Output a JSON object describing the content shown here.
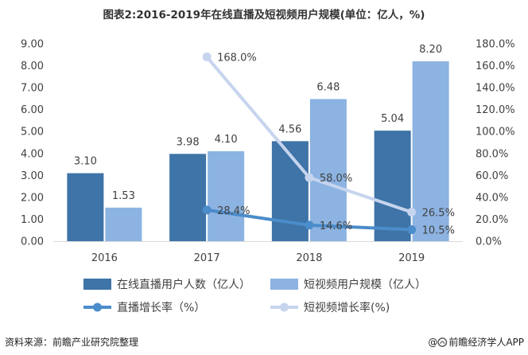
{
  "chart_data": {
    "type": "bar",
    "title": "图表2:2016-2019年在线直播及短视频用户规模(单位：亿人，%)",
    "categories": [
      "2016",
      "2017",
      "2018",
      "2019"
    ],
    "y_left": {
      "ylim": [
        0,
        9
      ],
      "ticks": [
        "0.00",
        "1.00",
        "2.00",
        "3.00",
        "4.00",
        "5.00",
        "6.00",
        "7.00",
        "8.00",
        "9.00"
      ]
    },
    "y_right": {
      "ylim": [
        0,
        180
      ],
      "ticks": [
        "0.0%",
        "20.0%",
        "40.0%",
        "60.0%",
        "80.0%",
        "100.0%",
        "120.0%",
        "140.0%",
        "160.0%",
        "180.0%"
      ]
    },
    "series": [
      {
        "name": "在线直播用户人数（亿人）",
        "type": "bar",
        "axis": "left",
        "values": [
          3.1,
          3.98,
          4.56,
          5.04
        ],
        "labels": [
          "3.10",
          "3.98",
          "4.56",
          "5.04"
        ],
        "color": "#3e74a7"
      },
      {
        "name": "短视频用户规模（亿人）",
        "type": "bar",
        "axis": "left",
        "values": [
          1.53,
          4.1,
          6.48,
          8.2
        ],
        "labels": [
          "1.53",
          "4.10",
          "6.48",
          "8.20"
        ],
        "color": "#8cb3e1"
      },
      {
        "name": "直播增长率（%）",
        "type": "line",
        "axis": "right",
        "values": [
          null,
          28.4,
          14.6,
          10.5
        ],
        "labels": [
          null,
          "28.4%",
          "14.6%",
          "10.5%"
        ],
        "color": "#4b8cca"
      },
      {
        "name": "短视频增长率(%)",
        "type": "line",
        "axis": "right",
        "values": [
          null,
          168.0,
          58.0,
          26.5
        ],
        "labels": [
          null,
          "168.0%",
          "58.0%",
          "26.5%"
        ],
        "color": "#c6d4ee"
      }
    ],
    "legend": "bottom",
    "grid": false
  },
  "footer": {
    "source": "资料来源：前瞻产业研究院整理",
    "credit_prefix": "@",
    "credit_name": "前瞻经济学人APP",
    "credit_icon": "qianzhan-logo-icon"
  }
}
